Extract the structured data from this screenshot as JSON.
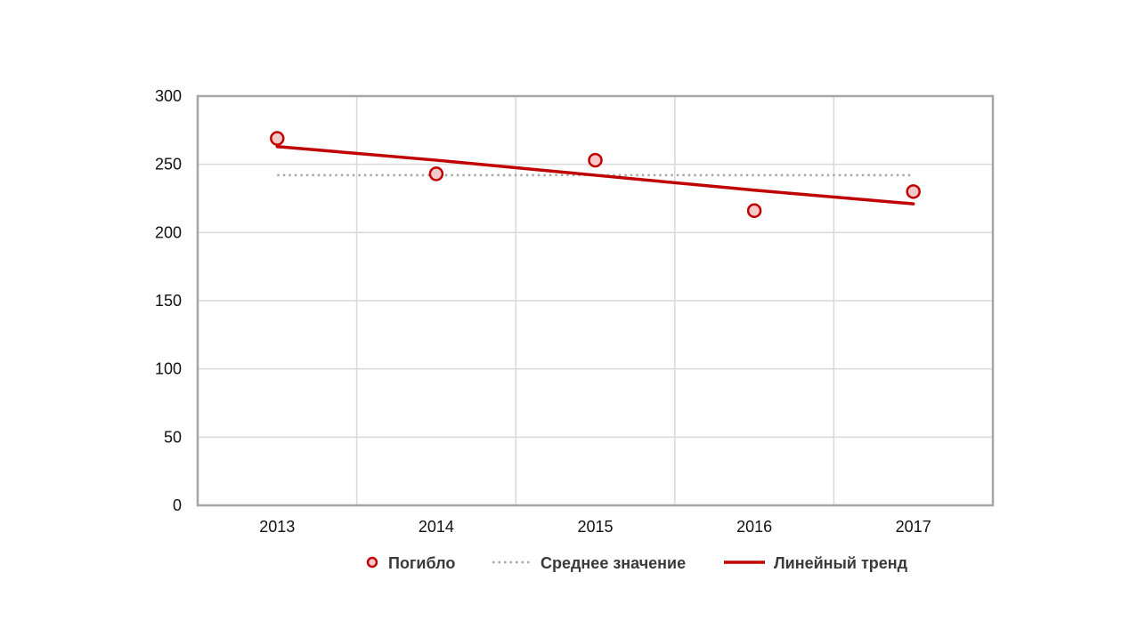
{
  "chart_data": {
    "type": "line",
    "categories": [
      "2013",
      "2014",
      "2015",
      "2016",
      "2017"
    ],
    "ylim": [
      0,
      300
    ],
    "yticks": [
      0,
      50,
      100,
      150,
      200,
      250,
      300
    ],
    "grid": true,
    "legend_position": "bottom-center",
    "series": [
      {
        "name": "Погибло",
        "style": "markers",
        "color": "#c00000",
        "fill": "#f6c9c9",
        "values": [
          269,
          243,
          253,
          216,
          230
        ]
      },
      {
        "name": "Среднее значение",
        "style": "dotted",
        "color": "#a6a6a6",
        "values": [
          242,
          242,
          242,
          242,
          242
        ]
      },
      {
        "name": "Линейный тренд",
        "style": "line",
        "color": "#c00000",
        "values": [
          263,
          253,
          242,
          231,
          221
        ]
      }
    ]
  }
}
